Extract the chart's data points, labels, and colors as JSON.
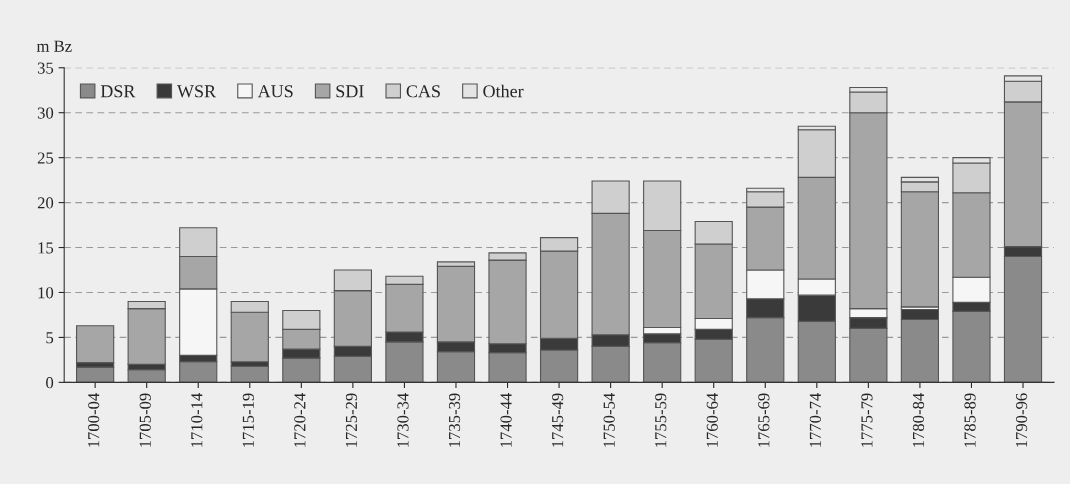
{
  "chart_data": {
    "type": "bar",
    "stacked": true,
    "ylabel": "m Bz",
    "categories": [
      "1700-04",
      "1705-09",
      "1710-14",
      "1715-19",
      "1720-24",
      "1725-29",
      "1730-34",
      "1735-39",
      "1740-44",
      "1745-49",
      "1750-54",
      "1755-59",
      "1760-64",
      "1765-69",
      "1770-74",
      "1775-79",
      "1780-84",
      "1785-89",
      "1790-96"
    ],
    "series": [
      {
        "name": "DSR",
        "color": "#8a8a8a",
        "values": [
          1.7,
          1.4,
          2.3,
          1.8,
          2.7,
          2.9,
          4.5,
          3.4,
          3.3,
          3.6,
          4.0,
          4.4,
          4.8,
          7.2,
          6.8,
          6.0,
          7.0,
          7.9,
          14.0
        ]
      },
      {
        "name": "WSR",
        "color": "#3a3a3a",
        "values": [
          0.5,
          0.6,
          0.7,
          0.5,
          1.0,
          1.1,
          1.1,
          1.1,
          1.0,
          1.3,
          1.3,
          1.0,
          1.1,
          2.1,
          2.9,
          1.2,
          1.1,
          1.0,
          1.1
        ]
      },
      {
        "name": "AUS",
        "color": "#f6f6f6",
        "values": [
          0,
          0,
          7.4,
          0,
          0,
          0,
          0,
          0,
          0,
          0,
          0,
          0.7,
          1.2,
          3.2,
          1.8,
          1.0,
          0.3,
          2.8,
          0
        ]
      },
      {
        "name": "SDI",
        "color": "#a6a6a6",
        "values": [
          4.1,
          6.2,
          3.6,
          5.5,
          2.2,
          6.2,
          5.3,
          8.4,
          9.3,
          9.7,
          13.5,
          10.8,
          8.3,
          7.0,
          11.3,
          21.8,
          12.8,
          9.4,
          16.1
        ]
      },
      {
        "name": "CAS",
        "color": "#cfcfcf",
        "values": [
          0,
          0.8,
          3.2,
          1.2,
          2.1,
          2.3,
          0.9,
          0.5,
          0.8,
          1.5,
          3.6,
          5.5,
          2.5,
          1.7,
          5.3,
          2.3,
          1.1,
          3.3,
          2.3
        ]
      },
      {
        "name": "Other",
        "color": "#e4e4e4",
        "values": [
          0,
          0,
          0,
          0,
          0,
          0,
          0,
          0,
          0,
          0,
          0,
          0,
          0,
          0.4,
          0.4,
          0.5,
          0.5,
          0.6,
          0.6
        ]
      }
    ],
    "ylim": [
      0,
      35
    ],
    "yticks": [
      0,
      5,
      10,
      15,
      20,
      25,
      30,
      35
    ],
    "grid": "y",
    "legend": "top left"
  }
}
